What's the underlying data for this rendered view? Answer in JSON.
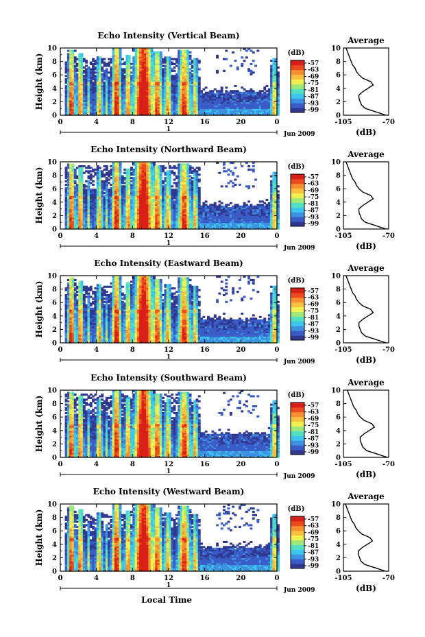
{
  "chart_data": {
    "type": "heatmap",
    "x_label": "Local Time",
    "date_label": "Jun 2009",
    "y_label": "Height (km)",
    "x_ticks": [
      "0",
      "4",
      "8",
      "12",
      "16",
      "20",
      "0"
    ],
    "day_marker": "1",
    "y_ticks": [
      "0",
      "2",
      "4",
      "6",
      "8",
      "10"
    ],
    "xlim": [
      0,
      24
    ],
    "ylim": [
      0,
      10
    ],
    "colorbar": {
      "unit": "(dB)",
      "ticks": [
        "-57",
        "-63",
        "-69",
        "-75",
        "-81",
        "-87",
        "-93",
        "-99"
      ],
      "range": [
        -102,
        -54
      ],
      "colors": [
        "#303890",
        "#3a5cc6",
        "#3e90e0",
        "#3cc6ee",
        "#52e0c0",
        "#a0e878",
        "#f0f050",
        "#f8c040",
        "#f89030",
        "#ee4a20",
        "#d82018"
      ]
    },
    "profile": {
      "title": "Average",
      "x_label": "(dB)",
      "x_ticks": [
        "-105",
        "-70"
      ],
      "xlim": [
        -105,
        -70
      ],
      "y_ticks": [
        "0",
        "2",
        "4",
        "6",
        "8",
        "10"
      ],
      "heights": [
        0,
        0.5,
        1,
        1.5,
        2,
        2.5,
        3,
        3.5,
        4,
        4.5,
        5,
        5.5,
        6,
        6.5,
        7,
        7.5,
        8,
        8.5,
        9,
        9.5,
        10
      ],
      "values": [
        -72,
        -80,
        -88,
        -91,
        -92,
        -93,
        -93,
        -90,
        -86,
        -82,
        -84,
        -90,
        -93,
        -95,
        -96,
        -98,
        -99,
        -100,
        -101,
        -102,
        -103
      ]
    },
    "panels": [
      {
        "title": "Echo Intensity (Vertical Beam)"
      },
      {
        "title": "Echo Intensity (Northward Beam)"
      },
      {
        "title": "Echo Intensity (Eastward Beam)"
      },
      {
        "title": "Echo Intensity (Southward Beam)"
      },
      {
        "title": "Echo Intensity (Westward Beam)"
      }
    ]
  }
}
